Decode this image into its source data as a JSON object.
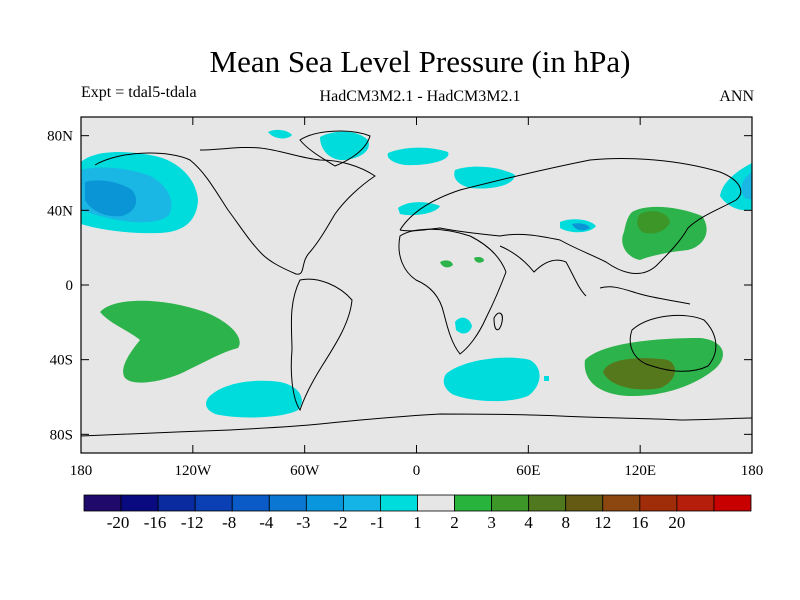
{
  "title": "Mean Sea Level Pressure (in hPa)",
  "subtitle_left": "Expt = tdal5-tdala",
  "subtitle_center": "HadCM3M2.1 - HadCM3M2.1",
  "subtitle_right": "ANN",
  "map": {
    "type": "filled-contour-map",
    "projection": "cylindrical-equidistant",
    "lon_range": [
      -180,
      180
    ],
    "lat_range": [
      -90,
      90
    ],
    "x_ticks": [
      {
        "lon": -180,
        "label": "180"
      },
      {
        "lon": -120,
        "label": "120W"
      },
      {
        "lon": -60,
        "label": "60W"
      },
      {
        "lon": 0,
        "label": "0"
      },
      {
        "lon": 60,
        "label": "60E"
      },
      {
        "lon": 120,
        "label": "120E"
      },
      {
        "lon": 180,
        "label": "180"
      }
    ],
    "y_ticks": [
      {
        "lat": 80,
        "label": "80N"
      },
      {
        "lat": 40,
        "label": "40N"
      },
      {
        "lat": 0,
        "label": "0"
      },
      {
        "lat": -40,
        "label": "40S"
      },
      {
        "lat": -80,
        "label": "80S"
      }
    ],
    "background_color": "#e6e6e6"
  },
  "colorbar": {
    "colors": [
      "#1f0a6b",
      "#0a0a80",
      "#0a2aa0",
      "#0a40b4",
      "#0a5ac8",
      "#0a78d2",
      "#0a96dc",
      "#14b4e6",
      "#00dcdc",
      "#e6e6e6",
      "#28b43c",
      "#3c9628",
      "#50781e",
      "#645a14",
      "#8c460f",
      "#a02d0a",
      "#b41e0a",
      "#c80000"
    ],
    "labels": [
      "-20",
      "-16",
      "-12",
      "-8",
      "-4",
      "-3",
      "-2",
      "-1",
      "1",
      "2",
      "3",
      "4",
      "8",
      "12",
      "16",
      "20"
    ]
  },
  "colors": {
    "neg_1_2": "#00dcdc",
    "neg_2_3": "#1ab6e4",
    "neg_3_4": "#0a96d6",
    "pos_1_2": "#2db34b",
    "pos_3_4": "#56781c"
  }
}
